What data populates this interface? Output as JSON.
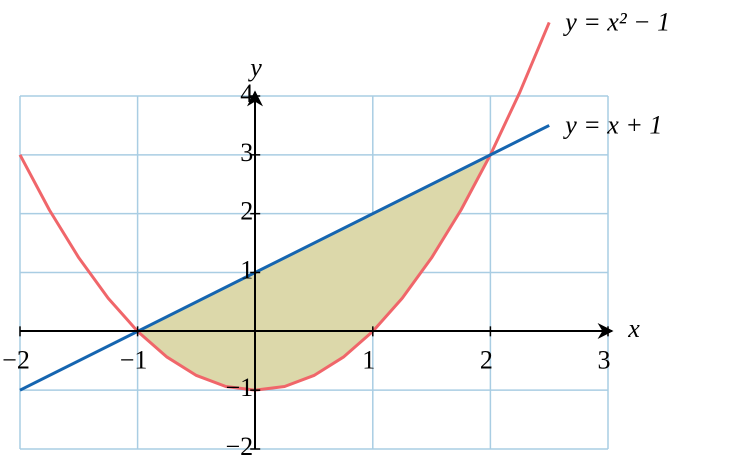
{
  "chart_data": {
    "type": "line",
    "x_label": "x",
    "y_label": "y",
    "xlim": [
      -2,
      3
    ],
    "ylim": [
      -2,
      4
    ],
    "xticks": [
      {
        "value": -2,
        "label": "−2"
      },
      {
        "value": -1,
        "label": "−1"
      },
      1,
      2,
      3
    ],
    "yticks": [
      {
        "value": -2,
        "label": "−2"
      },
      {
        "value": -1,
        "label": "−1"
      },
      1,
      2,
      3,
      4
    ],
    "grid": true,
    "grid_color": "#a9cde3",
    "series": [
      {
        "name": "y = x² − 1",
        "color": "#f0666a",
        "x": [
          -2,
          -1.75,
          -1.5,
          -1.25,
          -1,
          -0.75,
          -0.5,
          -0.25,
          0,
          0.25,
          0.5,
          0.75,
          1,
          1.25,
          1.5,
          1.75,
          2,
          2.25,
          2.5
        ],
        "values": [
          3,
          2.0625,
          1.25,
          0.5625,
          0,
          -0.4375,
          -0.75,
          -0.9375,
          -1,
          -0.9375,
          -0.75,
          -0.4375,
          0,
          0.5625,
          1.25,
          2.0625,
          3,
          4.0625,
          5.25
        ]
      },
      {
        "name": "y = x + 1",
        "color": "#1565b0",
        "x": [
          -2,
          2.5
        ],
        "values": [
          -1,
          3.5
        ]
      }
    ],
    "fill_between": {
      "from": -1,
      "to": 2,
      "color": "#dcd8aa"
    }
  }
}
